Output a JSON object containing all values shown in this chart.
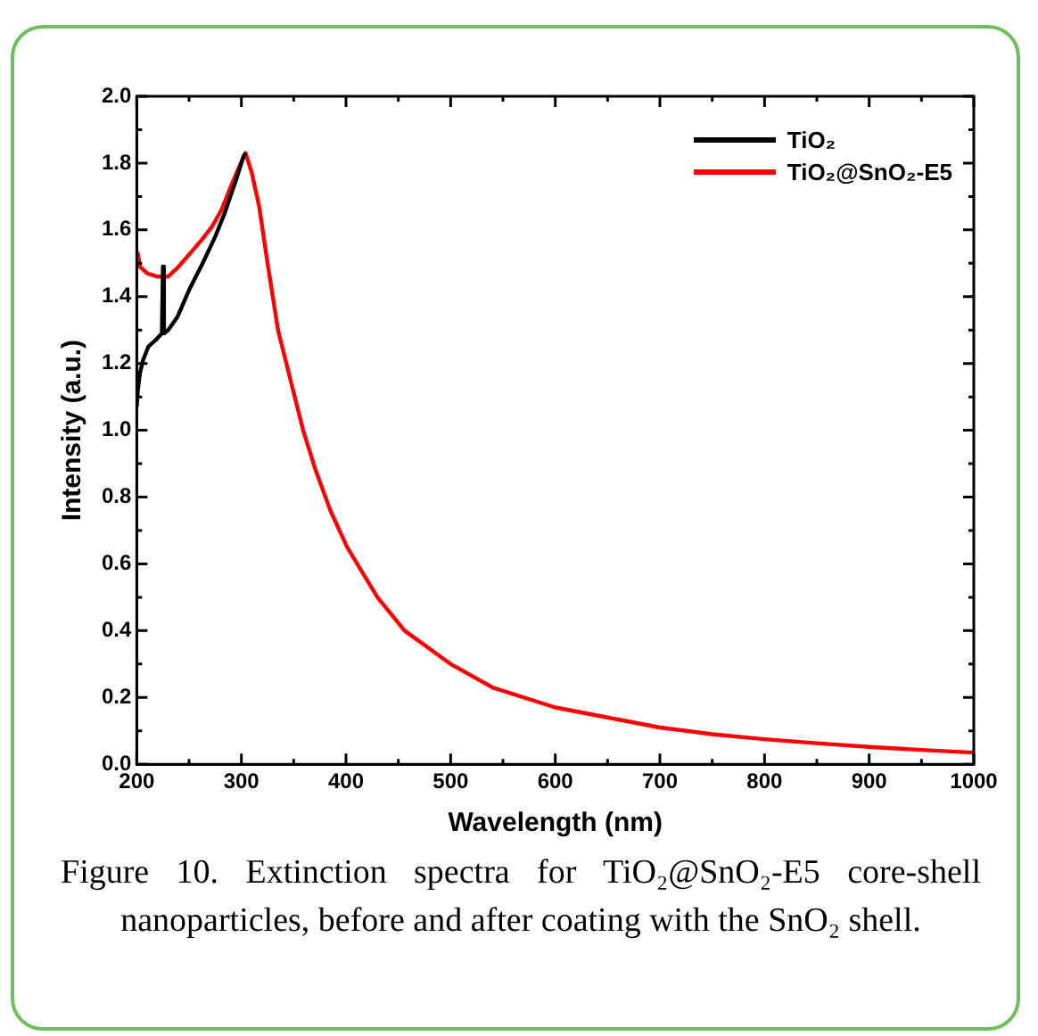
{
  "chart_data": {
    "type": "line",
    "xlabel": "Wavelength (nm)",
    "ylabel": "Intensity (a.u.)",
    "xlim": [
      200,
      1000
    ],
    "ylim": [
      0,
      2
    ],
    "xticks": [
      200,
      {
        "value": 250,
        "label": null
      },
      300,
      {
        "value": 350,
        "label": null
      },
      400,
      {
        "value": 450,
        "label": null
      },
      500,
      {
        "value": 550,
        "label": null
      },
      600,
      {
        "value": 650,
        "label": null
      },
      700,
      {
        "value": 750,
        "label": null
      },
      800,
      {
        "value": 850,
        "label": null
      },
      900,
      {
        "value": 950,
        "label": null
      },
      1000
    ],
    "yticks": [
      {
        "value": 0,
        "label": "0.0"
      },
      {
        "value": 0.1,
        "label": null
      },
      0.2,
      {
        "value": 0.3,
        "label": null
      },
      0.4,
      {
        "value": 0.5,
        "label": null
      },
      0.6,
      {
        "value": 0.7,
        "label": null
      },
      0.8,
      {
        "value": 0.9,
        "label": null
      },
      {
        "value": 1,
        "label": "1.0"
      },
      {
        "value": 1.1,
        "label": null
      },
      1.2,
      {
        "value": 1.3,
        "label": null
      },
      1.4,
      {
        "value": 1.5,
        "label": null
      },
      1.6,
      {
        "value": 1.7,
        "label": null
      },
      1.8,
      {
        "value": 1.9,
        "label": null
      },
      {
        "value": 2,
        "label": "2.0"
      }
    ],
    "grid": false,
    "legend": "top right",
    "marker": "none",
    "line_style": "solid",
    "series": [
      {
        "name": "TiO₂",
        "color": "#000000",
        "x": [
          200,
          201,
          203,
          206,
          211,
          218,
          224,
          225,
          226,
          230,
          239,
          250,
          263,
          275,
          284,
          295,
          302,
          304
        ],
        "values": [
          1.07,
          1.12,
          1.17,
          1.21,
          1.25,
          1.27,
          1.29,
          1.49,
          1.29,
          1.3,
          1.34,
          1.42,
          1.5,
          1.58,
          1.65,
          1.75,
          1.82,
          1.83
        ]
      },
      {
        "name": "TiO₂@SnO₂-E5",
        "color": "#ff0000",
        "x": [
          200,
          201,
          203,
          210,
          220,
          230,
          240,
          251,
          262,
          272,
          281,
          290,
          298,
          304,
          310,
          317,
          325,
          335,
          347,
          359,
          371,
          385,
          401,
          430,
          456,
          500,
          540,
          600,
          650,
          700,
          750,
          800,
          850,
          900,
          950,
          1000
        ],
        "values": [
          1.5,
          1.53,
          1.49,
          1.47,
          1.46,
          1.46,
          1.49,
          1.53,
          1.57,
          1.61,
          1.66,
          1.73,
          1.79,
          1.83,
          1.77,
          1.67,
          1.5,
          1.3,
          1.15,
          1.0,
          0.88,
          0.76,
          0.65,
          0.5,
          0.4,
          0.3,
          0.23,
          0.17,
          0.14,
          0.11,
          0.09,
          0.075,
          0.063,
          0.052,
          0.043,
          0.035
        ]
      }
    ],
    "annotations": [
      "Figure 10.  Extinction spectra for TiO₂@SnO₂-E5 core-shell nanoparticles, before and after coating with the SnO₂ shell."
    ]
  }
}
